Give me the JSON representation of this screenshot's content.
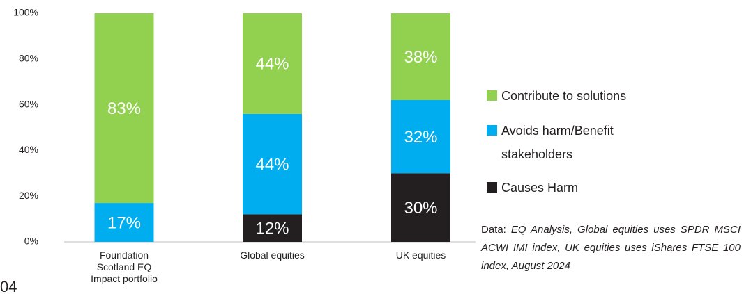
{
  "chart_data": {
    "type": "stacked_bar",
    "categories": [
      "Foundation Scotland EQ Impact portfolio",
      "Global equities",
      "UK equities"
    ],
    "series": [
      {
        "name": "Causes Harm",
        "color": "#231f20",
        "values": [
          0,
          12,
          30
        ],
        "value_labels": [
          null,
          "12%",
          "30%"
        ]
      },
      {
        "name": "Avoids harm/Benefit stakeholders",
        "color": "#00aeef",
        "values": [
          17,
          44,
          32
        ],
        "value_labels": [
          "17%",
          "44%",
          "32%"
        ]
      },
      {
        "name": "Contribute to solutions",
        "color": "#92d050",
        "values": [
          83,
          44,
          38
        ],
        "value_labels": [
          "83%",
          "44%",
          "38%"
        ]
      }
    ],
    "ylim": [
      0,
      100
    ],
    "yticks": [
      {
        "value": 0,
        "label": "0%"
      },
      {
        "value": 20,
        "label": "20%"
      },
      {
        "value": 40,
        "label": "40%"
      },
      {
        "value": 60,
        "label": "60%"
      },
      {
        "value": 80,
        "label": "80%"
      },
      {
        "value": 100,
        "label": "100%"
      }
    ],
    "grid": false,
    "legend": "right",
    "note_label": "Data:",
    "note": "EQ Analysis, Global equities uses SPDR MSCI ACWI IMI index, UK equities uses iShares FTSE 100 index, August 2024"
  },
  "page_number": "04"
}
